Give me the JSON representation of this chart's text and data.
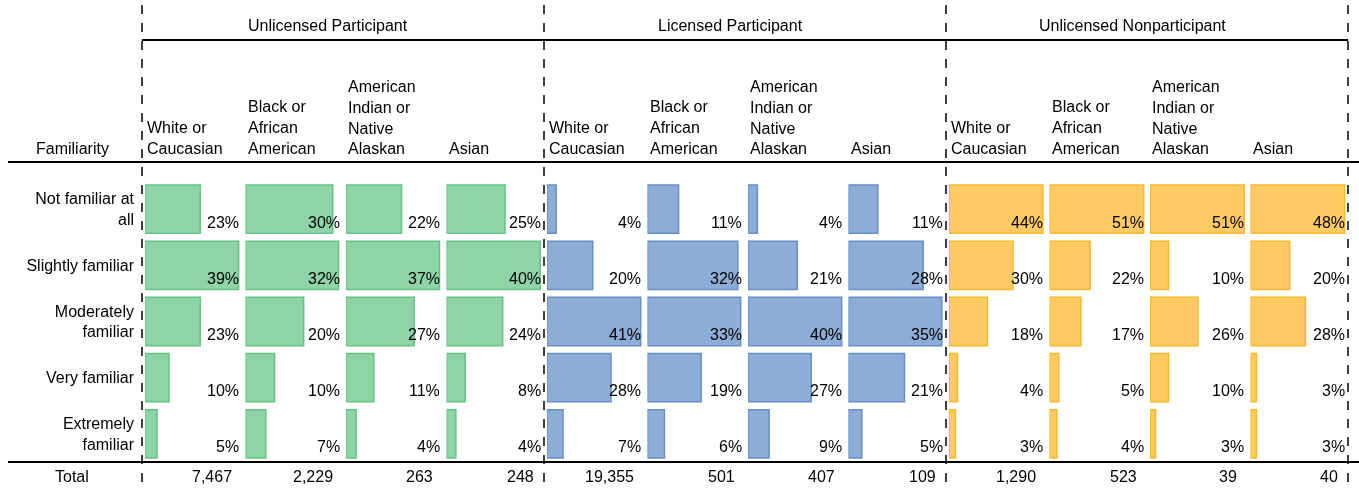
{
  "chart_data": [
    {
      "type": "bar",
      "orientation": "horizontal",
      "subtitle": "White or Caucasian",
      "ylabel": "Familiarity",
      "categories": [
        "Not familiar at all",
        "Slightly familiar",
        "Moderately familiar",
        "Very familiar",
        "Extremely familiar"
      ],
      "values": [
        23,
        39,
        23,
        10,
        5
      ],
      "value_labels": [
        "23%",
        "39%",
        "23%",
        "10%",
        "5%"
      ],
      "color": "#63c384",
      "xlim": [
        0,
        40
      ],
      "tick_labels": "y",
      "annotations": [
        "Total",
        "7,467"
      ]
    },
    {
      "type": "bar",
      "orientation": "horizontal",
      "title": "Unlicensed Participant",
      "subtitle": "Black or African American",
      "categories": [
        "Not familiar at all",
        "Slightly familiar",
        "Moderately familiar",
        "Very familiar",
        "Extremely familiar"
      ],
      "values": [
        30,
        32,
        20,
        10,
        7
      ],
      "value_labels": [
        "30%",
        "32%",
        "20%",
        "10%",
        "7%"
      ],
      "color": "#63c384",
      "xlim": [
        0,
        33
      ],
      "tick_labels": false,
      "annotations": [
        "2,229"
      ]
    },
    {
      "type": "bar",
      "orientation": "horizontal",
      "subtitle": "American Indian or Native Alaskan",
      "categories": [
        "Not familiar at all",
        "Slightly familiar",
        "Moderately familiar",
        "Very familiar",
        "Extremely familiar"
      ],
      "values": [
        22,
        37,
        27,
        11,
        4
      ],
      "value_labels": [
        "22%",
        "37%",
        "27%",
        "11%",
        "4%"
      ],
      "color": "#63c384",
      "xlim": [
        0,
        38
      ],
      "tick_labels": false,
      "annotations": [
        "263"
      ]
    },
    {
      "type": "bar",
      "orientation": "horizontal",
      "subtitle": "Asian",
      "categories": [
        "Not familiar at all",
        "Slightly familiar",
        "Moderately familiar",
        "Very familiar",
        "Extremely familiar"
      ],
      "values": [
        25,
        40,
        24,
        8,
        4
      ],
      "value_labels": [
        "25%",
        "40%",
        "24%",
        "8%",
        "4%"
      ],
      "color": "#63c384",
      "xlim": [
        0,
        41
      ],
      "tick_labels": false,
      "annotations": [
        "248"
      ]
    },
    {
      "type": "bar",
      "orientation": "horizontal",
      "subtitle": "White or Caucasian",
      "categories": [
        "Not familiar at all",
        "Slightly familiar",
        "Moderately familiar",
        "Very familiar",
        "Extremely familiar"
      ],
      "values": [
        4,
        20,
        41,
        28,
        7
      ],
      "value_labels": [
        "4%",
        "20%",
        "41%",
        "28%",
        "7%"
      ],
      "color": "#638ec6",
      "xlim": [
        0,
        42
      ],
      "tick_labels": false,
      "annotations": [
        "19,355"
      ]
    },
    {
      "type": "bar",
      "orientation": "horizontal",
      "title": "Licensed Participant",
      "subtitle": "Black or African American",
      "categories": [
        "Not familiar at all",
        "Slightly familiar",
        "Moderately familiar",
        "Very familiar",
        "Extremely familiar"
      ],
      "values": [
        11,
        32,
        33,
        19,
        6
      ],
      "value_labels": [
        "11%",
        "32%",
        "33%",
        "19%",
        "6%"
      ],
      "color": "#638ec6",
      "xlim": [
        0,
        34
      ],
      "tick_labels": false,
      "annotations": [
        "501"
      ]
    },
    {
      "type": "bar",
      "orientation": "horizontal",
      "subtitle": "American Indian or Native Alaskan",
      "categories": [
        "Not familiar at all",
        "Slightly familiar",
        "Moderately familiar",
        "Very familiar",
        "Extremely familiar"
      ],
      "values": [
        4,
        21,
        40,
        27,
        9
      ],
      "value_labels": [
        "4%",
        "21%",
        "40%",
        "27%",
        "9%"
      ],
      "color": "#638ec6",
      "xlim": [
        0,
        41
      ],
      "tick_labels": false,
      "annotations": [
        "407"
      ]
    },
    {
      "type": "bar",
      "orientation": "horizontal",
      "subtitle": "Asian",
      "categories": [
        "Not familiar at all",
        "Slightly familiar",
        "Moderately familiar",
        "Very familiar",
        "Extremely familiar"
      ],
      "values": [
        11,
        28,
        35,
        21,
        5
      ],
      "value_labels": [
        "11%",
        "28%",
        "35%",
        "21%",
        "5%"
      ],
      "color": "#638ec6",
      "xlim": [
        0,
        36
      ],
      "tick_labels": false,
      "annotations": [
        "109"
      ]
    },
    {
      "type": "bar",
      "orientation": "horizontal",
      "subtitle": "White or Caucasian",
      "categories": [
        "Not familiar at all",
        "Slightly familiar",
        "Moderately familiar",
        "Very familiar",
        "Extremely familiar"
      ],
      "values": [
        44,
        30,
        18,
        4,
        3
      ],
      "value_labels": [
        "44%",
        "30%",
        "18%",
        "4%",
        "3%"
      ],
      "color": "#ffb628",
      "xlim": [
        0,
        45
      ],
      "tick_labels": false,
      "annotations": [
        "1,290"
      ]
    },
    {
      "type": "bar",
      "orientation": "horizontal",
      "title": "Unlicensed Nonparticipant",
      "subtitle": "Black or African American",
      "categories": [
        "Not familiar at all",
        "Slightly familiar",
        "Moderately familiar",
        "Very familiar",
        "Extremely familiar"
      ],
      "values": [
        51,
        22,
        17,
        5,
        4
      ],
      "value_labels": [
        "51%",
        "22%",
        "17%",
        "5%",
        "4%"
      ],
      "color": "#ffb628",
      "xlim": [
        0,
        52
      ],
      "tick_labels": false,
      "annotations": [
        "523"
      ]
    },
    {
      "type": "bar",
      "orientation": "horizontal",
      "subtitle": "American Indian or Native Alaskan",
      "categories": [
        "Not familiar at all",
        "Slightly familiar",
        "Moderately familiar",
        "Very familiar",
        "Extremely familiar"
      ],
      "values": [
        51,
        10,
        26,
        10,
        3
      ],
      "value_labels": [
        "51%",
        "10%",
        "26%",
        "10%",
        "3%"
      ],
      "color": "#ffb628",
      "xlim": [
        0,
        52
      ],
      "tick_labels": false,
      "annotations": [
        "39"
      ]
    },
    {
      "type": "bar",
      "orientation": "horizontal",
      "subtitle": "Asian",
      "categories": [
        "Not familiar at all",
        "Slightly familiar",
        "Moderately familiar",
        "Very familiar",
        "Extremely familiar"
      ],
      "values": [
        48,
        20,
        28,
        3,
        3
      ],
      "value_labels": [
        "48%",
        "20%",
        "28%",
        "3%",
        "3%"
      ],
      "color": "#ffb628",
      "xlim": [
        0,
        49
      ],
      "tick_labels": false,
      "annotations": [
        "40"
      ]
    }
  ]
}
